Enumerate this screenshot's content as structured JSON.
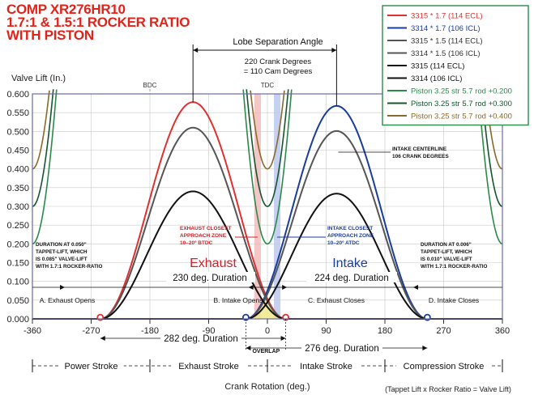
{
  "title_lines": [
    "COMP XR276HR10",
    "1.7:1 & 1.5:1 ROCKER RATIO",
    "WITH PISTON"
  ],
  "chart_data": {
    "type": "line",
    "xlabel": "Crank Rotation (deg.)",
    "ylabel": "Valve Lift (In.)",
    "xlim": [
      -360,
      360
    ],
    "ylim": [
      0,
      0.6
    ],
    "x_ticks": [
      -360,
      -270,
      -180,
      -90,
      0,
      90,
      180,
      270,
      360
    ],
    "y_ticks": [
      "0.000",
      "0.050",
      "0.100",
      "0.150",
      "0.200",
      "0.250",
      "0.300",
      "0.350",
      "0.400",
      "0.450",
      "0.500",
      "0.550",
      "0.600"
    ],
    "grid": true,
    "legend_position": "top-right",
    "series": [
      {
        "name": "3315 * 1.7 (114 ECL)",
        "color": "#e03030",
        "kind": "exhaust",
        "x_center": -114,
        "peak": 0.578,
        "half_width": 142
      },
      {
        "name": "3314 * 1.7 (106 ICL)",
        "color": "#1a3c9c",
        "kind": "intake",
        "x_center": 106,
        "peak": 0.568,
        "half_width": 139
      },
      {
        "name": "3315 * 1.5 (114 ECL)",
        "color": "#555555",
        "kind": "exhaust",
        "x_center": -114,
        "peak": 0.51,
        "half_width": 142
      },
      {
        "name": "3314 * 1.5 (106 ICL)",
        "color": "#555555",
        "kind": "intake",
        "x_center": 106,
        "peak": 0.501,
        "half_width": 139
      },
      {
        "name": "3315 (114 ECL)",
        "color": "#111111",
        "kind": "exhaust",
        "x_center": -114,
        "peak": 0.34,
        "half_width": 142
      },
      {
        "name": "3314 (106 ICL)",
        "color": "#111111",
        "kind": "intake",
        "x_center": 106,
        "peak": 0.334,
        "half_width": 139
      },
      {
        "name": "Piston 3.25 str 5.7 rod +0.200",
        "color": "#2a8a4a",
        "kind": "piston",
        "offset": 0.2
      },
      {
        "name": "Piston 3.25 str 5.7 rod +0.300",
        "color": "#14562e",
        "kind": "piston",
        "offset": 0.3
      },
      {
        "name": "Piston 3.25 str 5.7 rod +0.400",
        "color": "#8a6a2a",
        "kind": "piston",
        "offset": 0.4
      }
    ],
    "event_points": [
      {
        "label": "A. Exhaust Opens",
        "x": -256
      },
      {
        "label": "B. Intake Opens",
        "x": -33
      },
      {
        "label": "C. Exhaust Closes",
        "x": 28
      },
      {
        "label": "D. Intake Closes",
        "x": 245
      }
    ],
    "bdc_label": "BDC",
    "tdc_label": "TDC",
    "lobe_separation": {
      "label": "Lobe Separation Angle",
      "line1": "220 Crank Degrees",
      "line2": "= 110 Cam Degrees"
    },
    "intake_centerline_note": [
      "INTAKE CENTERLINE",
      "106 CRANK DEGREES"
    ],
    "exhaust_zone_note": [
      "EXHAUST CLOSEST",
      "APPROACH ZONE",
      "10–20º BTDC"
    ],
    "intake_zone_note": [
      "INTAKE CLOSEST",
      "APPROACH ZONE",
      "10–20º ATDC"
    ],
    "left_duration_note": [
      "DURATION AT 0.050\"",
      "TAPPET-LIFT, WHICH",
      "IS 0.085\" VALVE-LIFT",
      "WITH 1.7:1 ROCKER-RATIO"
    ],
    "right_duration_note": [
      "DURATION AT 0.006\"",
      "TAPPET-LIFT, WHICH",
      "IS 0.010\" VALVE-LIFT",
      "WITH 1.7:1 ROCKER-RATIO"
    ],
    "exhaust_label": "Exhaust",
    "intake_label": "Intake",
    "exhaust_duration": "230 deg. Duration",
    "intake_duration": "224 deg. Duration",
    "exhaust_duration_long": "282 deg. Duration",
    "intake_duration_long": "276 deg. Duration",
    "overlap_label": "OVERLAP",
    "strokes": [
      "Power Stroke",
      "Exhaust Stroke",
      "Intake Stroke",
      "Compression Stroke"
    ],
    "formula": "(Tappet Lift  x  Rocker Ratio  =  Valve Lift)"
  }
}
